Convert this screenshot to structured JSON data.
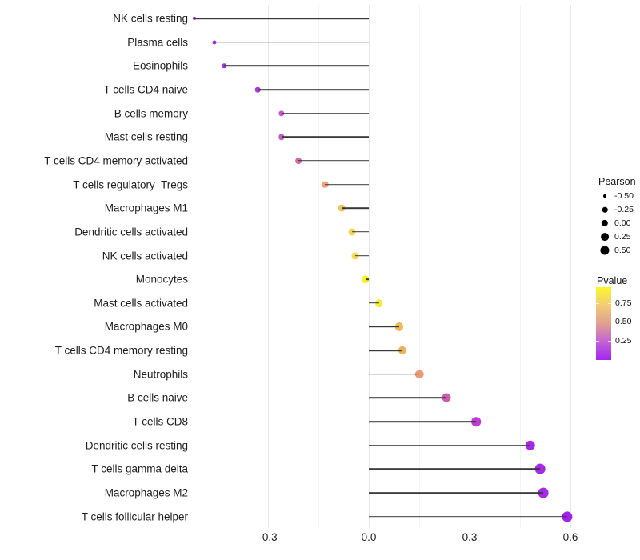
{
  "chart_data": {
    "type": "scatter",
    "subtype": "lollipop",
    "orientation": "horizontal",
    "title": "",
    "xlabel": "",
    "ylabel": "",
    "xlim": [
      -0.57,
      0.64
    ],
    "x_major_ticks": [
      -0.3,
      0.0,
      0.3,
      0.6
    ],
    "x_tick_labels": [
      "-0.3",
      "0.0",
      "0.3",
      "0.6"
    ],
    "x_minor_ticks": [
      -0.45,
      -0.15,
      0.15,
      0.45
    ],
    "grid": true,
    "baseline_x": 0.0,
    "categories": [
      "NK cells resting",
      "Plasma cells",
      "Eosinophils",
      "T cells CD4 naive",
      "B cells memory",
      "Mast cells resting",
      "T cells CD4 memory activated",
      "T cells regulatory  Tregs",
      "Macrophages M1",
      "Dendritic cells activated",
      "NK cells activated",
      "Monocytes",
      "Mast cells activated",
      "Macrophages M0",
      "T cells CD4 memory resting",
      "Neutrophils",
      "B cells naive",
      "T cells CD8",
      "Dendritic cells resting",
      "T cells gamma delta",
      "Macrophages M2",
      "T cells follicular helper"
    ],
    "series": [
      {
        "name": "Pearson",
        "values": [
          -0.52,
          -0.46,
          -0.43,
          -0.33,
          -0.26,
          -0.26,
          -0.21,
          -0.13,
          -0.08,
          -0.05,
          -0.04,
          -0.01,
          0.03,
          0.09,
          0.1,
          0.15,
          0.23,
          0.32,
          0.48,
          0.51,
          0.52,
          0.59
        ]
      }
    ],
    "point_colors": [
      "#8F2BD8",
      "#9C31E2",
      "#A136E0",
      "#AE3BD9",
      "#C455C9",
      "#C55BC5",
      "#CD6FA6",
      "#EDA27B",
      "#EFC464",
      "#F2D75A",
      "#F3DB56",
      "#F9F32B",
      "#F5E93C",
      "#EFB95A",
      "#EDB15C",
      "#E89B78",
      "#CC5CB0",
      "#BC3FD2",
      "#A42BE4",
      "#A32BE8",
      "#A32BE8",
      "#A122EE"
    ],
    "stem_color": "#383838",
    "size_encoding": "Pearson",
    "color_encoding": "Pvalue"
  },
  "legend": {
    "size": {
      "title": "Pearson",
      "entries": [
        {
          "label": "-0.50",
          "value": -0.5
        },
        {
          "label": "-0.25",
          "value": -0.25
        },
        {
          "label": "0.00",
          "value": 0.0
        },
        {
          "label": "0.25",
          "value": 0.25
        },
        {
          "label": "0.50",
          "value": 0.5
        }
      ],
      "dot_color": "#000000"
    },
    "color": {
      "title": "Pvalue",
      "tick_labels": [
        "0.75",
        "0.50",
        "0.25"
      ],
      "gradient_stops": [
        "#FCF829",
        "#F2CB77",
        "#DFA090",
        "#C163D4",
        "#A226F2"
      ]
    }
  }
}
